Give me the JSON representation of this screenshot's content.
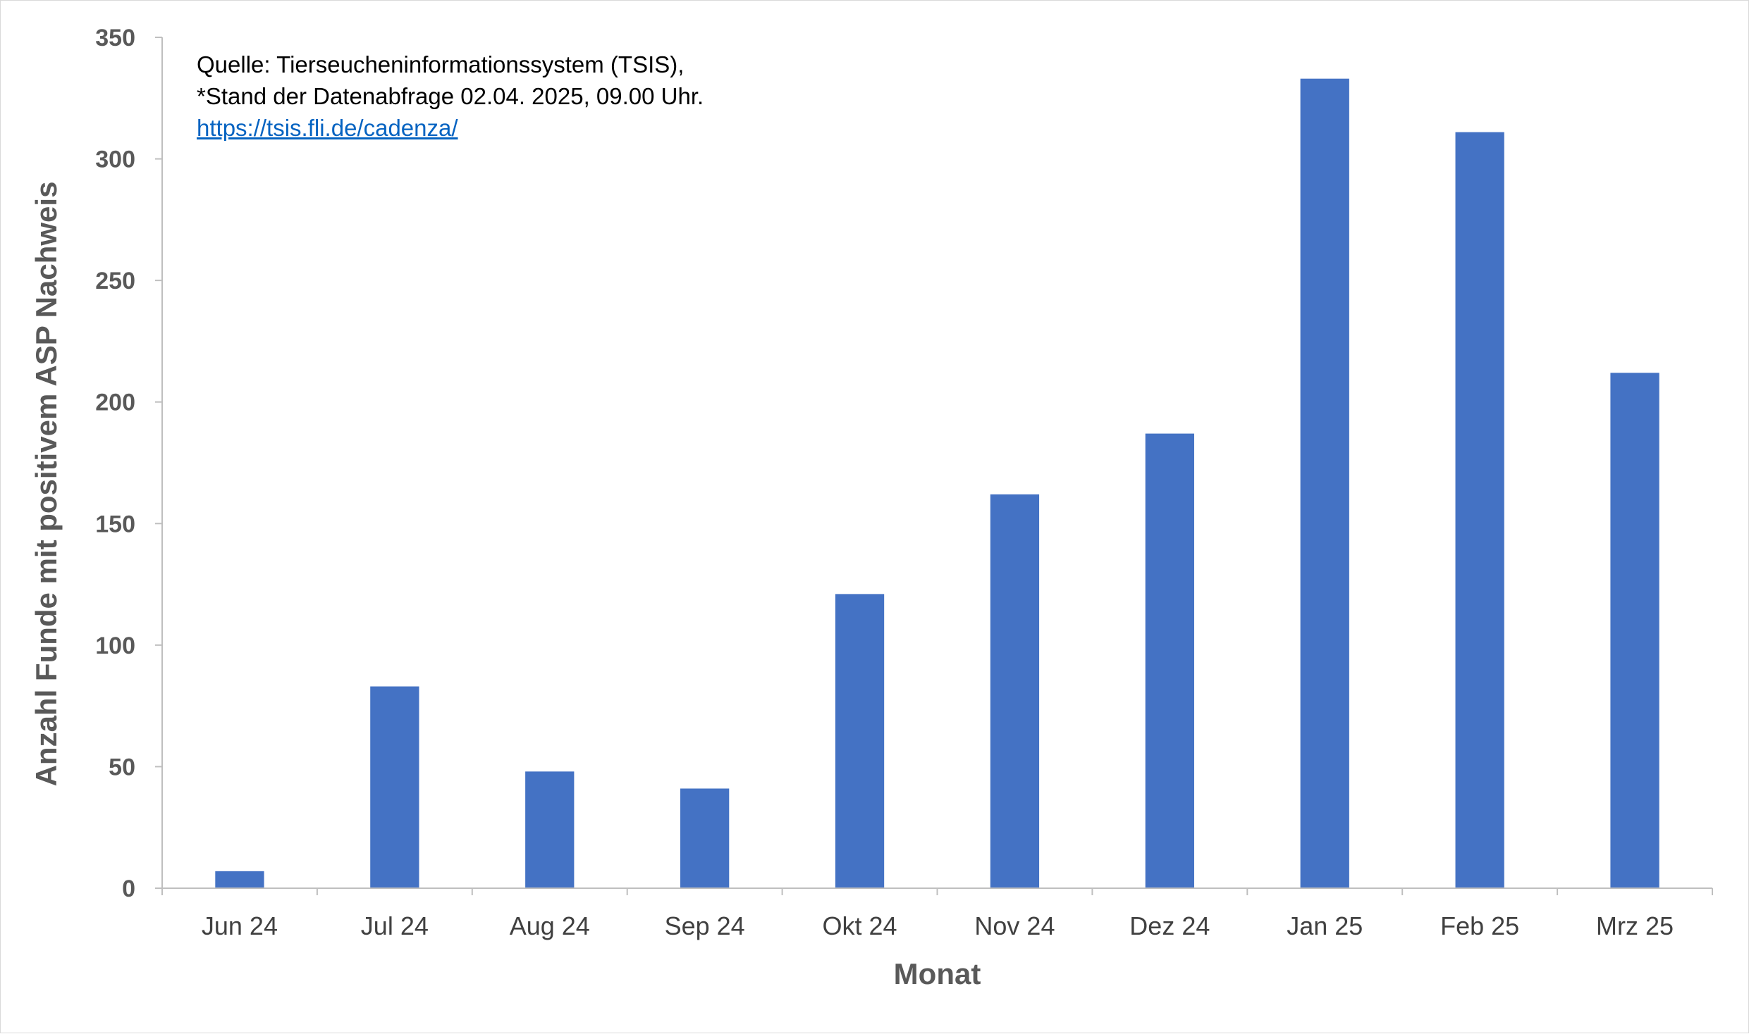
{
  "chart_data": {
    "type": "bar",
    "categories": [
      "Jun 24",
      "Jul 24",
      "Aug 24",
      "Sep 24",
      "Okt 24",
      "Nov 24",
      "Dez 24",
      "Jan 25",
      "Feb 25",
      "Mrz 25"
    ],
    "values": [
      7,
      83,
      48,
      41,
      121,
      162,
      187,
      333,
      311,
      212
    ],
    "xlabel": "Monat",
    "ylabel": "Anzahl Funde mit positivem ASP Nachweis",
    "ylim": [
      0,
      350
    ],
    "yticks": [
      0,
      50,
      100,
      150,
      200,
      250,
      300,
      350
    ],
    "grid": false,
    "legend": "none",
    "bar_color": "#4472c4",
    "annotation": {
      "line1": "Quelle: Tierseucheninformationssystem (TSIS),",
      "line2": "*Stand der Datenabfrage 02.04. 2025, 09.00 Uhr.",
      "link": "https://tsis.fli.de/cadenza/"
    }
  }
}
